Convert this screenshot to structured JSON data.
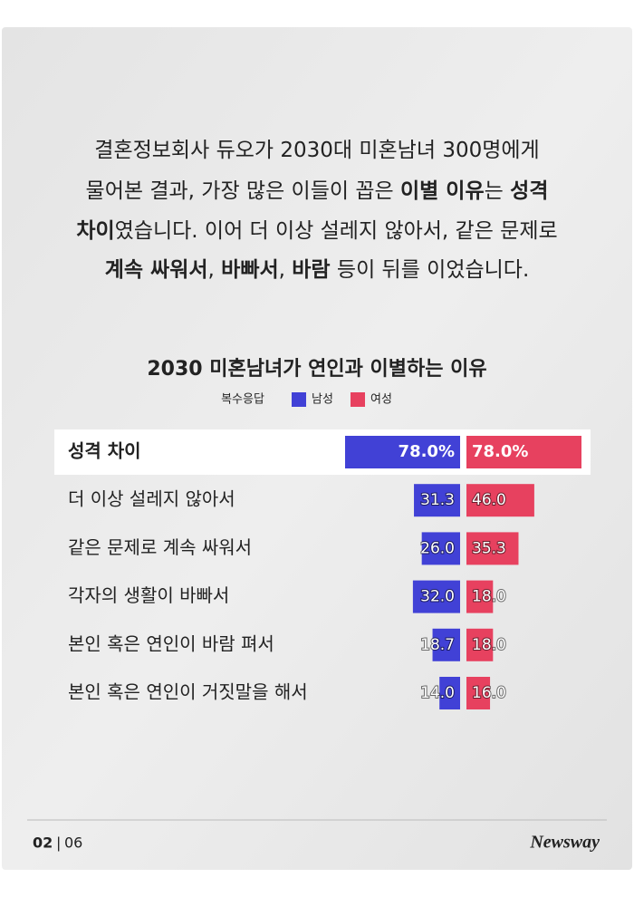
{
  "intro": [
    [
      {
        "text": "결혼정보회사 듀오가 2030대 미혼남녀 300명에게",
        "bold": false
      }
    ],
    [
      {
        "text": "물어본 결과, 가장 많은 이들이 꼽은 ",
        "bold": false
      },
      {
        "text": "이별 이유",
        "bold": true
      },
      {
        "text": "는 ",
        "bold": false
      },
      {
        "text": "성격",
        "bold": true
      }
    ],
    [
      {
        "text": "차이",
        "bold": true
      },
      {
        "text": "였습니다. 이어 더 이상 설레지 않아서, 같은 문제로",
        "bold": false
      }
    ],
    [
      {
        "text": "계속 싸워서",
        "bold": true
      },
      {
        "text": ", ",
        "bold": false
      },
      {
        "text": "바빠서",
        "bold": true
      },
      {
        "text": ", ",
        "bold": false
      },
      {
        "text": "바람",
        "bold": true
      },
      {
        "text": " 등이 뒤를 이었습니다.",
        "bold": false
      }
    ]
  ],
  "chart_data": {
    "type": "butterfly-bar",
    "title": "2030 미혼남녀가 연인과 이별하는 이유",
    "legend_note": "복수응답",
    "categories": [
      "성격 차이",
      "더 이상 설레지 않아서",
      "같은 문제로 계속 싸워서",
      "각자의 생활이 바빠서",
      "본인 혹은 연인이 바람 펴서",
      "본인 혹은 연인이 거짓말을 해서"
    ],
    "series": [
      {
        "name": "남성",
        "color": "#4141d6",
        "values": [
          78.0,
          31.3,
          26.0,
          32.0,
          18.7,
          14.0
        ],
        "value_labels": [
          "78.0%",
          "31.3",
          "26.0",
          "32.0",
          "18.7",
          "14.0"
        ]
      },
      {
        "name": "여성",
        "color": "#e7415f",
        "values": [
          78.0,
          46.0,
          35.3,
          18.0,
          18.0,
          16.0
        ],
        "value_labels": [
          "78.0%",
          "46.0",
          "35.3",
          "18.0",
          "18.0",
          "16.0"
        ]
      }
    ]
  },
  "footer": {
    "page": "02",
    "total": "06",
    "logo": "Newsway"
  }
}
